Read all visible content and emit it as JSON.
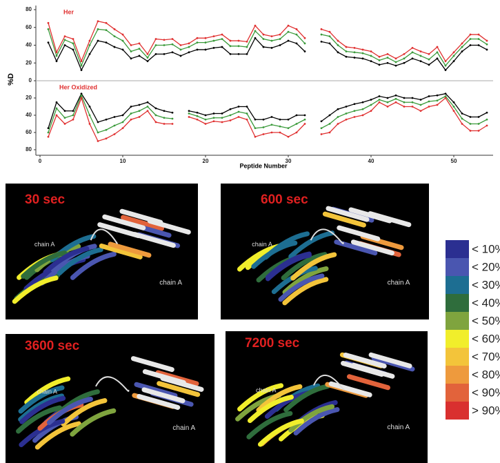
{
  "chart_data": {
    "type": "line",
    "xlabel": "Peptide Number",
    "ylabel": "%D",
    "x": [
      1,
      2,
      3,
      4,
      5,
      6,
      7,
      8,
      9,
      10,
      11,
      12,
      13,
      14,
      15,
      16,
      17,
      18,
      19,
      20,
      21,
      22,
      23,
      24,
      25,
      26,
      27,
      28,
      29,
      30,
      31,
      32,
      33,
      34,
      35,
      36,
      37,
      38,
      39,
      40,
      41,
      42,
      43,
      44,
      45,
      46,
      47,
      48,
      49,
      50,
      51,
      52,
      53,
      54
    ],
    "xlim": [
      0,
      55
    ],
    "xticks": [
      0,
      10,
      20,
      30,
      40,
      50
    ],
    "panels": [
      {
        "title": "Her",
        "ylim": [
          0,
          80
        ],
        "yticks": [
          0,
          20,
          40,
          60,
          80
        ],
        "inverted": false,
        "series": [
          {
            "color": "#000000",
            "values": [
              43,
              22,
              40,
              35,
              12,
              30,
              45,
              43,
              38,
              35,
              25,
              28,
              22,
              30,
              30,
              32,
              28,
              32,
              35,
              35,
              37,
              38,
              30,
              30,
              30,
              48,
              38,
              37,
              40,
              45,
              42,
              33,
              null,
              44,
              42,
              32,
              27,
              26,
              25,
              22,
              18,
              20,
              17,
              20,
              25,
              22,
              18,
              25,
              12,
              22,
              33,
              40,
              40,
              35
            ]
          },
          {
            "color": "#3a9a3a",
            "values": [
              58,
              28,
              46,
              42,
              17,
              40,
              58,
              57,
              50,
              45,
              33,
              36,
              26,
              40,
              40,
              41,
              35,
              38,
              43,
              43,
              45,
              47,
              39,
              39,
              38,
              56,
              47,
              45,
              47,
              55,
              52,
              42,
              null,
              52,
              50,
              40,
              33,
              32,
              31,
              28,
              23,
              26,
              21,
              25,
              32,
              28,
              24,
              32,
              17,
              28,
              38,
              47,
              47,
              41
            ]
          },
          {
            "color": "#e03030",
            "values": [
              65,
              32,
              50,
              47,
              22,
              45,
              67,
              65,
              58,
              52,
              40,
              42,
              30,
              47,
              46,
              47,
              40,
              42,
              48,
              48,
              50,
              52,
              45,
              45,
              44,
              62,
              52,
              50,
              52,
              62,
              58,
              48,
              null,
              58,
              55,
              45,
              38,
              37,
              35,
              33,
              27,
              30,
              25,
              30,
              37,
              33,
              30,
              38,
              22,
              32,
              42,
              52,
              52,
              45
            ]
          }
        ]
      },
      {
        "title": "Her Oxidized",
        "ylim": [
          0,
          80
        ],
        "yticks": [
          20,
          40,
          60,
          80
        ],
        "inverted": true,
        "series": [
          {
            "color": "#000000",
            "values": [
              55,
              25,
              35,
              35,
              15,
              30,
              48,
              45,
              42,
              40,
              30,
              28,
              25,
              32,
              35,
              37,
              null,
              35,
              37,
              40,
              38,
              38,
              33,
              30,
              30,
              45,
              45,
              42,
              45,
              45,
              40,
              40,
              null,
              47,
              40,
              33,
              30,
              27,
              25,
              22,
              18,
              20,
              17,
              20,
              20,
              22,
              18,
              17,
              15,
              25,
              38,
              42,
              42,
              37
            ]
          },
          {
            "color": "#3a9a3a",
            "values": [
              60,
              32,
              43,
              40,
              17,
              40,
              60,
              57,
              52,
              48,
              38,
              35,
              30,
              40,
              43,
              44,
              null,
              38,
              41,
              45,
              43,
              43,
              40,
              36,
              38,
              55,
              54,
              51,
              53,
              55,
              50,
              45,
              null,
              55,
              50,
              42,
              38,
              35,
              33,
              28,
              22,
              25,
              21,
              25,
              25,
              28,
              24,
              23,
              18,
              30,
              44,
              50,
              50,
              45
            ]
          },
          {
            "color": "#e03030",
            "values": [
              65,
              40,
              50,
              45,
              20,
              50,
              70,
              67,
              62,
              55,
              45,
              42,
              35,
              48,
              50,
              50,
              null,
              42,
              45,
              50,
              47,
              48,
              46,
              42,
              45,
              65,
              62,
              60,
              60,
              65,
              60,
              50,
              null,
              62,
              60,
              50,
              45,
              42,
              40,
              35,
              25,
              30,
              25,
              30,
              30,
              35,
              30,
              28,
              20,
              35,
              50,
              58,
              58,
              52
            ]
          }
        ]
      }
    ]
  },
  "structures": [
    {
      "title": "30 sec",
      "labels": [
        "chain A",
        "chain A"
      ]
    },
    {
      "title": "600 sec",
      "labels": [
        "chain A",
        "chain A"
      ]
    },
    {
      "title": "3600 sec",
      "labels": [
        "chain A",
        "chain A"
      ]
    },
    {
      "title": "7200 sec",
      "labels": [
        "chain A",
        "chain A"
      ]
    }
  ],
  "color_legend": [
    {
      "label": "< 10%",
      "color": "#2b2f91"
    },
    {
      "label": "< 20%",
      "color": "#4a56b0"
    },
    {
      "label": "< 30%",
      "color": "#1d6e92"
    },
    {
      "label": "< 40%",
      "color": "#2f6d3c"
    },
    {
      "label": "< 50%",
      "color": "#7fa43e"
    },
    {
      "label": "< 60%",
      "color": "#f1ee2b"
    },
    {
      "label": "< 70%",
      "color": "#f3c43a"
    },
    {
      "label": "< 80%",
      "color": "#ee9a3d"
    },
    {
      "label": "< 90%",
      "color": "#e2633b"
    },
    {
      "label": "> 90%",
      "color": "#d9302f"
    }
  ]
}
